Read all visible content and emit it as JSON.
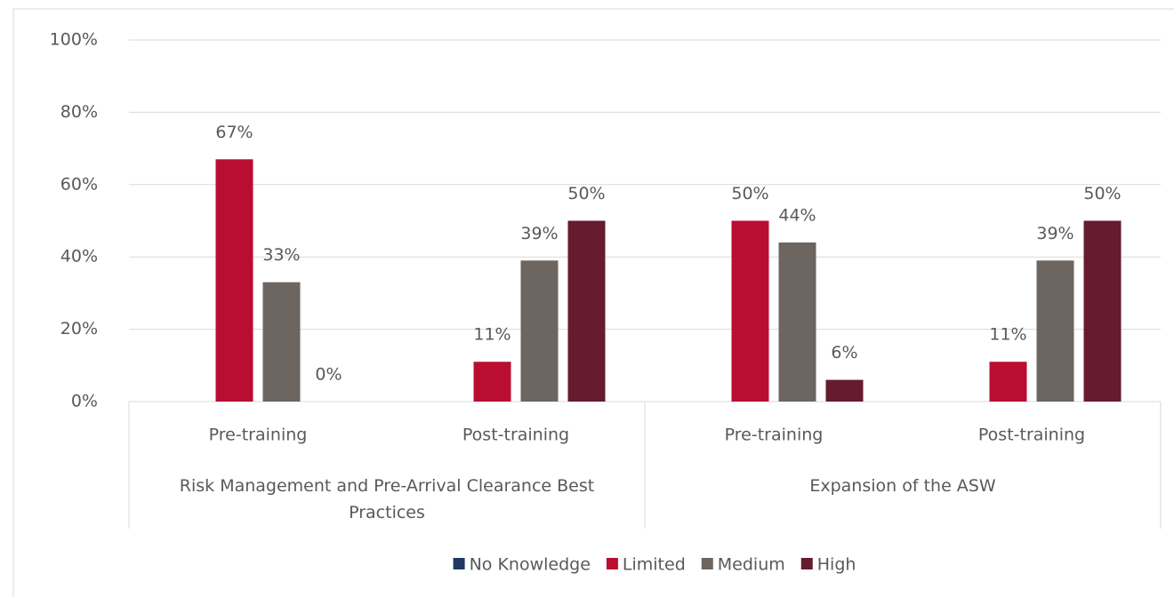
{
  "chart_data": {
    "type": "bar",
    "categories": [
      "Pre-training",
      "Post-training",
      "Pre-training",
      "Post-training"
    ],
    "groups": [
      "Risk Management and Pre-Arrival Clearance Best Practices",
      "Expansion of the ASW"
    ],
    "series": [
      {
        "name": "No Knowledge",
        "color": "#1f3864",
        "values": [
          null,
          null,
          null,
          null
        ]
      },
      {
        "name": "Limited",
        "color": "#b90e31",
        "values": [
          67,
          11,
          50,
          11
        ],
        "value_labels": [
          "67%",
          "11%",
          "50%",
          "11%"
        ]
      },
      {
        "name": "Medium",
        "color": "#6d6560",
        "values": [
          33,
          39,
          44,
          39
        ],
        "value_labels": [
          "33%",
          "39%",
          "44%",
          "39%"
        ]
      },
      {
        "name": "High",
        "color": "#661b2e",
        "values": [
          0,
          50,
          6,
          50
        ],
        "value_labels": [
          "0%",
          "50%",
          "6%",
          "50%"
        ]
      }
    ],
    "ylim": [
      0,
      100
    ],
    "yticks": [
      {
        "value": 0,
        "label": "0%"
      },
      {
        "value": 20,
        "label": "20%"
      },
      {
        "value": 40,
        "label": "40%"
      },
      {
        "value": 60,
        "label": "60%"
      },
      {
        "value": 80,
        "label": "80%"
      },
      {
        "value": 100,
        "label": "100%"
      }
    ],
    "grid": true,
    "legend": "bottom"
  }
}
